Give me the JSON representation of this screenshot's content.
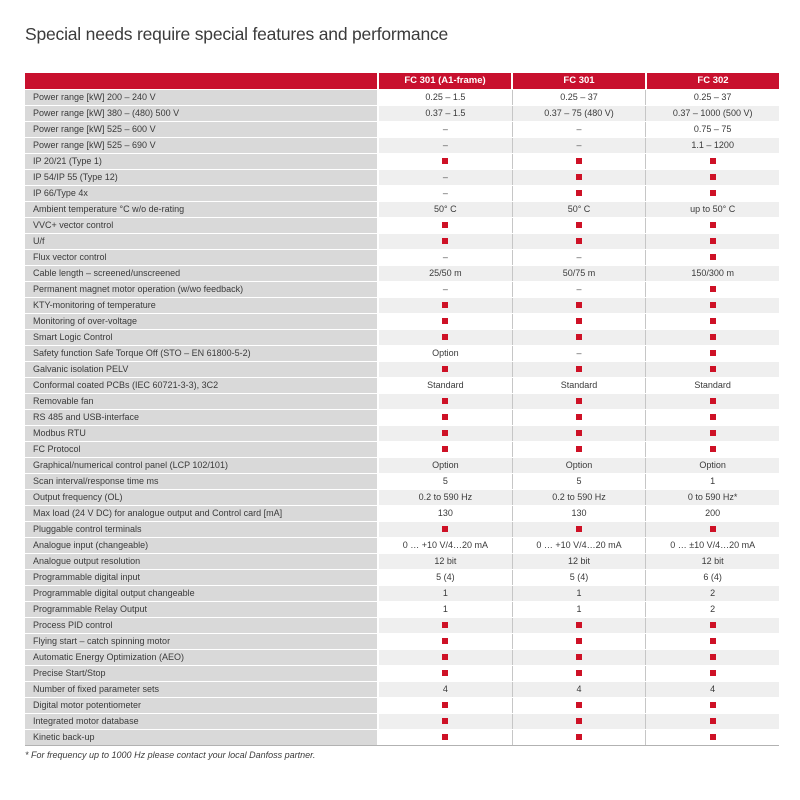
{
  "page": {
    "title": "Special needs require special features and performance"
  },
  "table": {
    "columns": [
      "FC 301 (A1-frame)",
      "FC 301",
      "FC 302"
    ],
    "rows": [
      {
        "feature": "Power range [kW] 200 – 240 V",
        "values": [
          "0.25 – 1.5",
          "0.25 – 37",
          "0.25 – 37"
        ]
      },
      {
        "feature": "Power range [kW] 380 – (480) 500 V",
        "values": [
          "0.37 – 1.5",
          "0.37 – 75 (480 V)",
          "0.37 – 1000 (500 V)"
        ]
      },
      {
        "feature": "Power range [kW] 525 – 600 V",
        "values": [
          "–",
          "–",
          "0.75 – 75"
        ]
      },
      {
        "feature": "Power range [kW] 525 – 690 V",
        "values": [
          "–",
          "–",
          "1.1 – 1200"
        ]
      },
      {
        "feature": "IP 20/21 (Type 1)",
        "values": [
          "■",
          "■",
          "■"
        ]
      },
      {
        "feature": "IP 54/IP 55 (Type 12)",
        "values": [
          "–",
          "■",
          "■"
        ]
      },
      {
        "feature": "IP 66/Type 4x",
        "values": [
          "–",
          "■",
          "■"
        ]
      },
      {
        "feature": "Ambient temperature °C w/o de-rating",
        "values": [
          "50° C",
          "50° C",
          "up to 50° C"
        ]
      },
      {
        "feature": "VVC+ vector control",
        "values": [
          "■",
          "■",
          "■"
        ]
      },
      {
        "feature": "U/f",
        "values": [
          "■",
          "■",
          "■"
        ]
      },
      {
        "feature": "Flux vector control",
        "values": [
          "–",
          "–",
          "■"
        ]
      },
      {
        "feature": "Cable length – screened/unscreened",
        "values": [
          "25/50 m",
          "50/75 m",
          "150/300 m"
        ]
      },
      {
        "feature": "Permanent magnet motor operation (w/wo feedback)",
        "values": [
          "–",
          "–",
          "■"
        ]
      },
      {
        "feature": "KTY-monitoring of temperature",
        "values": [
          "■",
          "■",
          "■"
        ]
      },
      {
        "feature": "Monitoring of over-voltage",
        "values": [
          "■",
          "■",
          "■"
        ]
      },
      {
        "feature": "Smart Logic Control",
        "values": [
          "■",
          "■",
          "■"
        ]
      },
      {
        "feature": "Safety function Safe Torque Off (STO – EN 61800-5-2)",
        "values": [
          "Option",
          "–",
          "■"
        ]
      },
      {
        "feature": "Galvanic isolation PELV",
        "values": [
          "■",
          "■",
          "■"
        ]
      },
      {
        "feature": "Conformal coated PCBs (IEC 60721-3-3), 3C2",
        "values": [
          "Standard",
          "Standard",
          "Standard"
        ]
      },
      {
        "feature": "Removable fan",
        "values": [
          "■",
          "■",
          "■"
        ]
      },
      {
        "feature": "RS 485 and USB-interface",
        "values": [
          "■",
          "■",
          "■"
        ]
      },
      {
        "feature": "Modbus RTU",
        "values": [
          "■",
          "■",
          "■"
        ]
      },
      {
        "feature": "FC Protocol",
        "values": [
          "■",
          "■",
          "■"
        ]
      },
      {
        "feature": "Graphical/numerical control panel (LCP 102/101)",
        "values": [
          "Option",
          "Option",
          "Option"
        ]
      },
      {
        "feature": "Scan interval/response time ms",
        "values": [
          "5",
          "5",
          "1"
        ]
      },
      {
        "feature": "Output frequency (OL)",
        "values": [
          "0.2 to 590 Hz",
          "0.2 to 590 Hz",
          "0 to 590 Hz*"
        ]
      },
      {
        "feature": "Max load (24 V DC) for analogue output and Control card [mA]",
        "values": [
          "130",
          "130",
          "200"
        ]
      },
      {
        "feature": "Pluggable control terminals",
        "values": [
          "■",
          "■",
          "■"
        ]
      },
      {
        "feature": "Analogue input (changeable)",
        "values": [
          "0 … +10 V/4…20 mA",
          "0 … +10 V/4…20 mA",
          "0 … ±10 V/4…20 mA"
        ]
      },
      {
        "feature": "Analogue output resolution",
        "values": [
          "12 bit",
          "12 bit",
          "12 bit"
        ]
      },
      {
        "feature": "Programmable digital input",
        "values": [
          "5 (4)",
          "5 (4)",
          "6 (4)"
        ]
      },
      {
        "feature": "Programmable digital output changeable",
        "values": [
          "1",
          "1",
          "2"
        ]
      },
      {
        "feature": "Programmable Relay Output",
        "values": [
          "1",
          "1",
          "2"
        ]
      },
      {
        "feature": "Process PID control",
        "values": [
          "■",
          "■",
          "■"
        ]
      },
      {
        "feature": "Flying start – catch spinning motor",
        "values": [
          "■",
          "■",
          "■"
        ]
      },
      {
        "feature": "Automatic Energy Optimization (AEO)",
        "values": [
          "■",
          "■",
          "■"
        ]
      },
      {
        "feature": "Precise Start/Stop",
        "values": [
          "■",
          "■",
          "■"
        ]
      },
      {
        "feature": "Number of fixed parameter sets",
        "values": [
          "4",
          "4",
          "4"
        ]
      },
      {
        "feature": "Digital motor potentiometer",
        "values": [
          "■",
          "■",
          "■"
        ]
      },
      {
        "feature": "Integrated motor database",
        "values": [
          "■",
          "■",
          "■"
        ]
      },
      {
        "feature": "Kinetic back-up",
        "values": [
          "■",
          "■",
          "■"
        ]
      }
    ],
    "footnote": "* For frequency up to 1000 Hz please contact your local Danfoss partner.",
    "legend": {
      "supported_marker": "red-square",
      "not_available_marker": "–"
    },
    "colors": {
      "brand_red": "#C8102E",
      "square_red": "#CE1126",
      "label_cell_bg": "#D9D9D9",
      "alt_row_bg": "#EFEFEF",
      "text": "#3A3A3A"
    }
  }
}
